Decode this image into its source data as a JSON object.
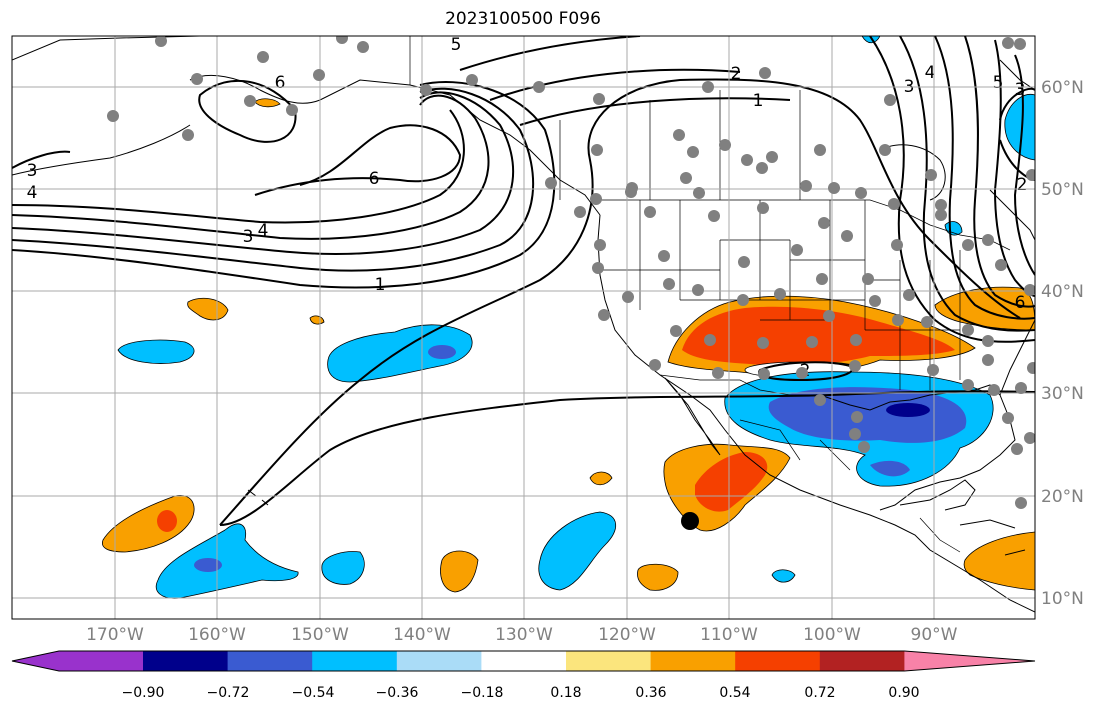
{
  "title": "2023100500 F096",
  "map": {
    "lat_labels": [
      "60°N",
      "50°N",
      "40°N",
      "30°N",
      "20°N",
      "10°N"
    ],
    "lon_labels": [
      "170°W",
      "160°W",
      "150°W",
      "140°W",
      "130°W",
      "120°W",
      "110°W",
      "100°W",
      "90°W"
    ],
    "contour_labels": [
      "6",
      "5",
      "2",
      "1",
      "3",
      "3",
      "4",
      "6",
      "3",
      "4",
      "1",
      "2",
      "3",
      "4",
      "5",
      "2",
      "6"
    ]
  },
  "colorbar": {
    "colors": [
      "#9932cc",
      "#00008b",
      "#3a5bd1",
      "#00bfff",
      "#aadcf7",
      "#ffffff",
      "#fbe57d",
      "#f9a000",
      "#f54000",
      "#b22222",
      "#f882a8"
    ],
    "tick_labels": [
      "−0.90",
      "−0.72",
      "−0.54",
      "−0.36",
      "−0.18",
      "0.18",
      "0.36",
      "0.54",
      "0.72",
      "0.90"
    ]
  },
  "point_colors": {
    "station": "#808080",
    "marker": "#000000"
  }
}
